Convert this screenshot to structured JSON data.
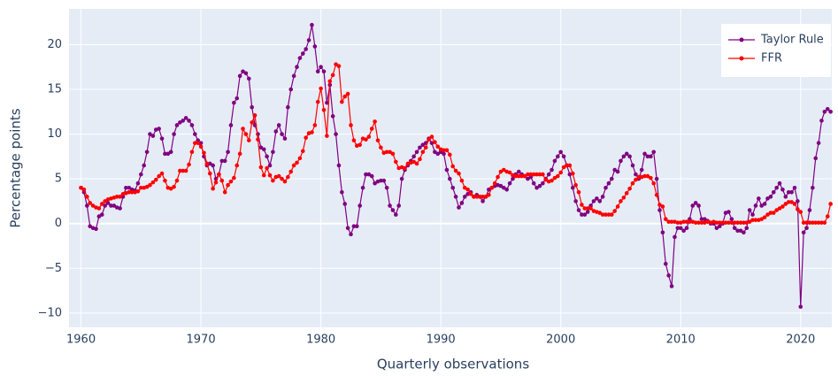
{
  "chart_data": {
    "type": "line",
    "x_label": "Quarterly observations",
    "y_label": "Percentage points",
    "xlim": [
      1959,
      2022.6
    ],
    "ylim": [
      -11.6,
      24
    ],
    "xticks": [
      1960,
      1970,
      1980,
      1990,
      2000,
      2010,
      2020
    ],
    "yticks": [
      {
        "value": -10,
        "label": "−10"
      },
      {
        "value": -5,
        "label": "−5"
      },
      0,
      5,
      10,
      15,
      20
    ],
    "grid": true,
    "legend": "top-right",
    "x": [
      1960,
      1960.25,
      1960.5,
      1960.75,
      1961,
      1961.25,
      1961.5,
      1961.75,
      1962,
      1962.25,
      1962.5,
      1962.75,
      1963,
      1963.25,
      1963.5,
      1963.75,
      1964,
      1964.25,
      1964.5,
      1964.75,
      1965,
      1965.25,
      1965.5,
      1965.75,
      1966,
      1966.25,
      1966.5,
      1966.75,
      1967,
      1967.25,
      1967.5,
      1967.75,
      1968,
      1968.25,
      1968.5,
      1968.75,
      1969,
      1969.25,
      1969.5,
      1969.75,
      1970,
      1970.25,
      1970.5,
      1970.75,
      1971,
      1971.25,
      1971.5,
      1971.75,
      1972,
      1972.25,
      1972.5,
      1972.75,
      1973,
      1973.25,
      1973.5,
      1973.75,
      1974,
      1974.25,
      1974.5,
      1974.75,
      1975,
      1975.25,
      1975.5,
      1975.75,
      1976,
      1976.25,
      1976.5,
      1976.75,
      1977,
      1977.25,
      1977.5,
      1977.75,
      1978,
      1978.25,
      1978.5,
      1978.75,
      1979,
      1979.25,
      1979.5,
      1979.75,
      1980,
      1980.25,
      1980.5,
      1980.75,
      1981,
      1981.25,
      1981.5,
      1981.75,
      1982,
      1982.25,
      1982.5,
      1982.75,
      1983,
      1983.25,
      1983.5,
      1983.75,
      1984,
      1984.25,
      1984.5,
      1984.75,
      1985,
      1985.25,
      1985.5,
      1985.75,
      1986,
      1986.25,
      1986.5,
      1986.75,
      1987,
      1987.25,
      1987.5,
      1987.75,
      1988,
      1988.25,
      1988.5,
      1988.75,
      1989,
      1989.25,
      1989.5,
      1989.75,
      1990,
      1990.25,
      1990.5,
      1990.75,
      1991,
      1991.25,
      1991.5,
      1991.75,
      1992,
      1992.25,
      1992.5,
      1992.75,
      1993,
      1993.25,
      1993.5,
      1993.75,
      1994,
      1994.25,
      1994.5,
      1994.75,
      1995,
      1995.25,
      1995.5,
      1995.75,
      1996,
      1996.25,
      1996.5,
      1996.75,
      1997,
      1997.25,
      1997.5,
      1997.75,
      1998,
      1998.25,
      1998.5,
      1998.75,
      1999,
      1999.25,
      1999.5,
      1999.75,
      2000,
      2000.25,
      2000.5,
      2000.75,
      2001,
      2001.25,
      2001.5,
      2001.75,
      2002,
      2002.25,
      2002.5,
      2002.75,
      2003,
      2003.25,
      2003.5,
      2003.75,
      2004,
      2004.25,
      2004.5,
      2004.75,
      2005,
      2005.25,
      2005.5,
      2005.75,
      2006,
      2006.25,
      2006.5,
      2006.75,
      2007,
      2007.25,
      2007.5,
      2007.75,
      2008,
      2008.25,
      2008.5,
      2008.75,
      2009,
      2009.25,
      2009.5,
      2009.75,
      2010,
      2010.25,
      2010.5,
      2010.75,
      2011,
      2011.25,
      2011.5,
      2011.75,
      2012,
      2012.25,
      2012.5,
      2012.75,
      2013,
      2013.25,
      2013.5,
      2013.75,
      2014,
      2014.25,
      2014.5,
      2014.75,
      2015,
      2015.25,
      2015.5,
      2015.75,
      2016,
      2016.25,
      2016.5,
      2016.75,
      2017,
      2017.25,
      2017.5,
      2017.75,
      2018,
      2018.25,
      2018.5,
      2018.75,
      2019,
      2019.25,
      2019.5,
      2019.75,
      2020,
      2020.25,
      2020.5,
      2020.75,
      2021,
      2021.25,
      2021.5,
      2021.75,
      2022,
      2022.25,
      2022.5
    ],
    "series": [
      {
        "name": "Taylor Rule",
        "color": "#800080",
        "values": [
          4,
          3.5,
          2,
          -0.3,
          -0.5,
          -0.6,
          0.8,
          1,
          2,
          2.3,
          2,
          2,
          1.8,
          1.7,
          3,
          4,
          4,
          3.8,
          3.7,
          4.5,
          5.5,
          6.5,
          8,
          10,
          9.8,
          10.5,
          10.6,
          9.5,
          7.8,
          7.8,
          8,
          10,
          11,
          11.3,
          11.5,
          11.8,
          11.5,
          11,
          10,
          9.3,
          9,
          7.5,
          6.5,
          6.7,
          6.5,
          5,
          5.5,
          7,
          7,
          8,
          11,
          13.5,
          14,
          16.5,
          17,
          16.8,
          16.2,
          13,
          11,
          10,
          8.5,
          8.3,
          7.5,
          6.5,
          8,
          10.3,
          11,
          10,
          9.5,
          13,
          15,
          16.5,
          17.5,
          18.5,
          19,
          19.5,
          20.5,
          22.2,
          19.8,
          17,
          17.5,
          17,
          13.5,
          15.5,
          12,
          10,
          6.5,
          3.5,
          2.2,
          -0.5,
          -1.2,
          -0.3,
          -0.3,
          2,
          4,
          5.5,
          5.5,
          5.3,
          4.5,
          4.7,
          4.8,
          4.8,
          4,
          2,
          1.5,
          1,
          2,
          5,
          6,
          6.5,
          7,
          7.5,
          8,
          8.5,
          8.8,
          9,
          9.5,
          9,
          8,
          7.8,
          8,
          7.8,
          6,
          5,
          4,
          3,
          1.8,
          2.3,
          3,
          3.3,
          3.5,
          3,
          3.2,
          3,
          2.5,
          3,
          3.8,
          4,
          4.2,
          4.3,
          4.2,
          4,
          3.8,
          4.5,
          5,
          5.5,
          5.8,
          5.5,
          5.3,
          5,
          5.2,
          4.5,
          4,
          4.2,
          4.5,
          5,
          5.5,
          6,
          7,
          7.5,
          8,
          7.5,
          6.5,
          5.5,
          4,
          2.5,
          1.5,
          1,
          1,
          1.3,
          2,
          2.5,
          2.8,
          2.5,
          3,
          4,
          4.5,
          5,
          6,
          5.8,
          7,
          7.5,
          7.8,
          7.5,
          6.5,
          5.5,
          5,
          6,
          7.8,
          7.5,
          7.5,
          8,
          5,
          1.5,
          -1,
          -4.5,
          -5.8,
          -7,
          -1.5,
          -0.5,
          -0.5,
          -0.8,
          -0.5,
          0.5,
          2,
          2.3,
          2,
          0.5,
          0.5,
          0.3,
          0,
          0,
          -0.5,
          -0.3,
          0,
          1.2,
          1.3,
          0.5,
          -0.5,
          -0.8,
          -0.8,
          -1,
          -0.5,
          1.5,
          1,
          2,
          2.8,
          2,
          2.2,
          2.8,
          3,
          3.5,
          4,
          4.5,
          3.8,
          3,
          3.5,
          3.5,
          4,
          2.5,
          -9.3,
          -1,
          -0.5,
          1.5,
          4,
          7.3,
          9,
          11.5,
          12.5,
          12.8,
          12.5
        ]
      },
      {
        "name": "FFR",
        "color": "#ff0000",
        "values": [
          4,
          3.8,
          3,
          2.3,
          2,
          1.8,
          1.7,
          2.2,
          2.5,
          2.7,
          2.8,
          2.9,
          3,
          3,
          3.3,
          3.4,
          3.5,
          3.5,
          3.5,
          3.6,
          4,
          4,
          4.1,
          4.3,
          4.6,
          4.9,
          5.3,
          5.6,
          4.8,
          4,
          3.9,
          4.1,
          4.8,
          5.9,
          5.9,
          5.9,
          6.6,
          8,
          9,
          9,
          8.6,
          7.9,
          6.7,
          5.6,
          3.9,
          4.6,
          5.5,
          4.8,
          3.5,
          4.3,
          4.7,
          5.1,
          6.5,
          7.8,
          10.6,
          10,
          9.3,
          11.3,
          12.1,
          9.4,
          6.3,
          5.4,
          6.2,
          5.4,
          4.8,
          5.2,
          5.3,
          5,
          4.7,
          5.2,
          5.8,
          6.5,
          6.8,
          7.3,
          8.1,
          9.6,
          10.1,
          10.2,
          11,
          13.6,
          15.1,
          12.7,
          9.8,
          15.9,
          16.6,
          17.8,
          17.6,
          13.6,
          14.2,
          14.5,
          11,
          9.3,
          8.7,
          8.8,
          9.5,
          9.4,
          9.7,
          10.6,
          11.4,
          9.3,
          8.5,
          7.9,
          8,
          8,
          7.8,
          6.9,
          6.2,
          6.3,
          6.2,
          6.7,
          6.8,
          6.9,
          6.7,
          7.2,
          8,
          8.5,
          9.4,
          9.7,
          9.1,
          8.6,
          8.3,
          8.2,
          8.2,
          7.7,
          6.4,
          5.9,
          5.6,
          4.8,
          4,
          3.8,
          3.3,
          3,
          3,
          3,
          3,
          3,
          3.2,
          4,
          4.5,
          5.2,
          5.8,
          6,
          5.8,
          5.7,
          5.4,
          5.3,
          5.3,
          5.3,
          5.3,
          5.5,
          5.5,
          5.5,
          5.5,
          5.5,
          5.5,
          4.9,
          4.7,
          4.8,
          5.1,
          5.3,
          5.7,
          6.3,
          6.5,
          6.5,
          5.6,
          4.3,
          3.5,
          2.1,
          1.7,
          1.7,
          1.7,
          1.4,
          1.3,
          1.2,
          1,
          1,
          1,
          1,
          1.4,
          1.9,
          2.5,
          2.9,
          3.4,
          3.9,
          4.5,
          4.9,
          5.2,
          5.2,
          5.3,
          5.3,
          5.1,
          4.5,
          3.2,
          2.1,
          1.9,
          0.5,
          0.2,
          0.2,
          0.2,
          0.1,
          0.1,
          0.2,
          0.2,
          0.2,
          0.2,
          0.1,
          0.1,
          0.1,
          0.1,
          0.2,
          0.1,
          0.2,
          0.1,
          0.1,
          0.1,
          0.1,
          0.1,
          0.1,
          0.1,
          0.1,
          0.1,
          0.1,
          0.1,
          0.2,
          0.4,
          0.4,
          0.4,
          0.5,
          0.7,
          1,
          1.2,
          1.2,
          1.5,
          1.7,
          1.9,
          2.2,
          2.4,
          2.4,
          2.2,
          1.6,
          1.3,
          0.1,
          0.1,
          0.1,
          0.1,
          0.1,
          0.1,
          0.1,
          0.1,
          0.8,
          2.2
        ]
      }
    ]
  }
}
